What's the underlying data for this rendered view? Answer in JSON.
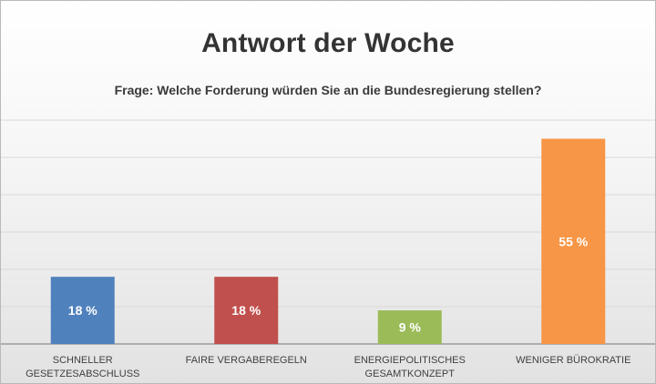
{
  "chart_data": {
    "type": "bar",
    "title": "Antwort der Woche",
    "subtitle": "Frage: Welche Forderung würden Sie an die Bundesregierung stellen?",
    "categories": [
      [
        "SCHNELLER",
        "GESETZESABSCHLUSS"
      ],
      [
        "FAIRE VERGABEREGELN"
      ],
      [
        "ENERGIEPOLITISCHES",
        "GESAMTKONZEPT"
      ],
      [
        "WENIGER BÜROKRATIE"
      ]
    ],
    "values": [
      18,
      18,
      9,
      55
    ],
    "data_labels": [
      "18 %",
      "18 %",
      "9 %",
      "55 %"
    ],
    "colors": [
      "#4f81bd",
      "#c0504d",
      "#9bbb59",
      "#f79646"
    ],
    "ylim": [
      0,
      60
    ],
    "grid": true,
    "gridline_color": "#d9d9d9",
    "axis_color": "#8c8c8c"
  }
}
